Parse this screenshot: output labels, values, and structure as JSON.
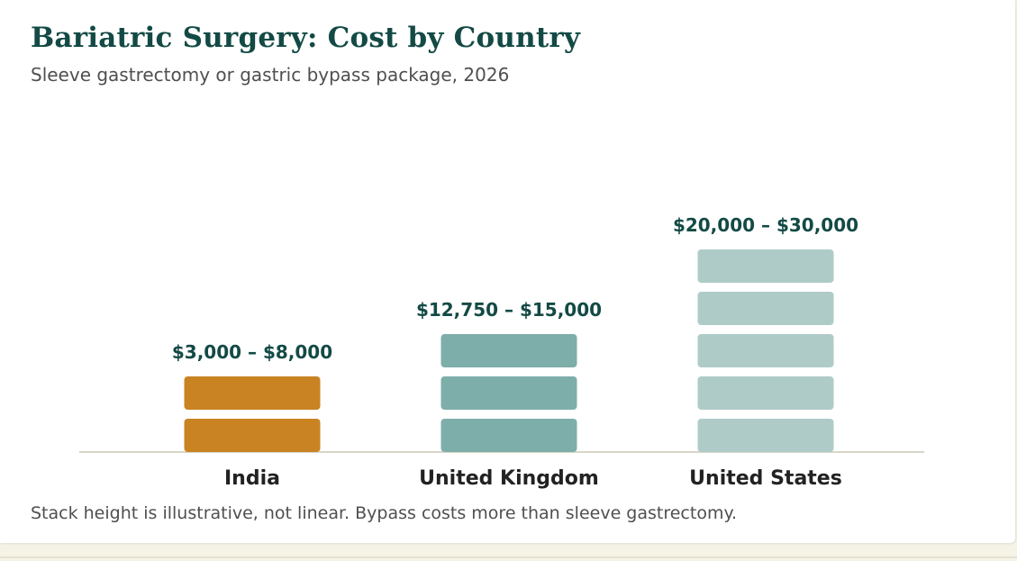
{
  "card": {
    "title": "Bariatric Surgery: Cost by Country",
    "subtitle": "Sleeve gastrectomy or gastric bypass package, 2026",
    "footnote": "Stack height is illustrative, not linear. Bypass costs more than sleeve gastrectomy."
  },
  "colors": {
    "title": "#134a45",
    "value_label": "#134a45",
    "category_label": "#222222",
    "baseline": "#d9d6c8",
    "india": "#c98322",
    "united_kingdom": "#7eaea9",
    "united_states": "#aecbc8"
  },
  "chart_data": {
    "type": "bar",
    "categories": [
      "India",
      "United Kingdom",
      "United States"
    ],
    "value_labels": [
      "$3,000 – $8,000",
      "$12,750 – $15,000",
      "$20,000 – $30,000"
    ],
    "ranges": [
      [
        3000,
        8000
      ],
      [
        12750,
        15000
      ],
      [
        20000,
        30000
      ]
    ],
    "stack_blocks": [
      2,
      3,
      5
    ],
    "colors": [
      "#c98322",
      "#7eaea9",
      "#aecbc8"
    ],
    "title": "Bariatric Surgery: Cost by Country",
    "subtitle": "Sleeve gastrectomy or gastric bypass package, 2026",
    "xlabel": "",
    "ylabel": "",
    "grid": false,
    "legend": "none"
  }
}
